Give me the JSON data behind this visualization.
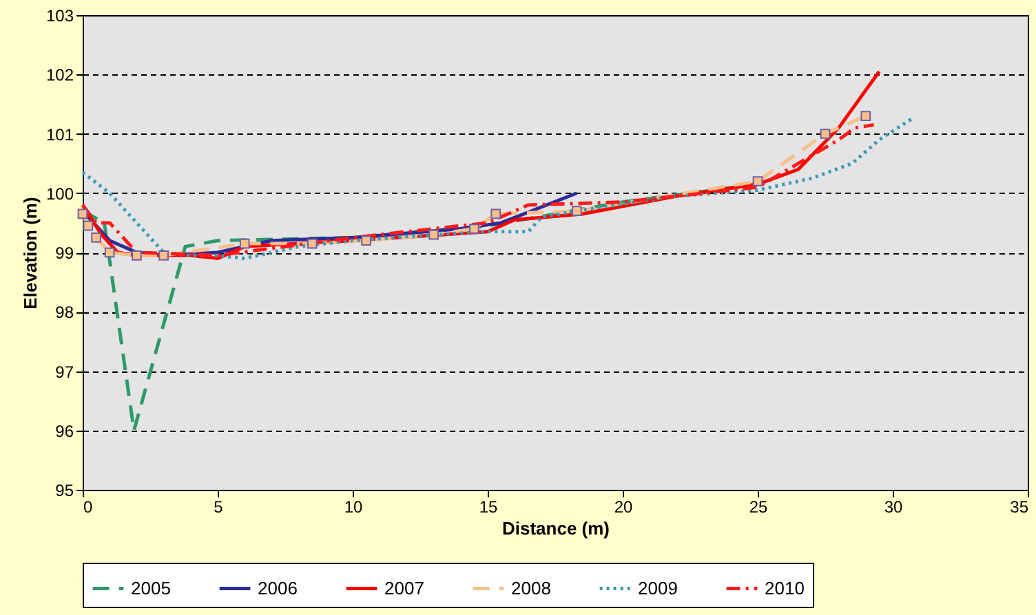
{
  "chart_data": {
    "type": "line",
    "xlabel": "Distance (m)",
    "ylabel": "Elevation (m)",
    "xlim": [
      0,
      35
    ],
    "xticks": [
      0,
      5,
      10,
      15,
      20,
      25,
      30,
      35
    ],
    "ylim": [
      95,
      103
    ],
    "yticks": [
      95,
      96,
      97,
      98,
      99,
      100,
      101,
      102,
      103
    ],
    "grid": "y",
    "legend": "bottom",
    "series": [
      {
        "name": "2005",
        "color": "#2e9a6a",
        "line_style": "dashed",
        "marker": "none",
        "x": [
          0,
          0.8,
          1.9,
          3.8,
          5,
          10,
          15,
          20,
          25
        ],
        "values": [
          99.7,
          99.5,
          96.0,
          99.1,
          99.2,
          99.25,
          99.45,
          99.85,
          100.15
        ]
      },
      {
        "name": "2006",
        "color": "#2b2b9a",
        "line_style": "solid",
        "marker": "none",
        "x": [
          0,
          0.6,
          1,
          2,
          3,
          5,
          7,
          10,
          14,
          15.5,
          18.3
        ],
        "values": [
          99.7,
          99.4,
          99.2,
          99.0,
          98.95,
          99.0,
          99.2,
          99.25,
          99.4,
          99.5,
          100.0
        ]
      },
      {
        "name": "2007",
        "color": "#ff0000",
        "line_style": "solid",
        "marker": "none",
        "x": [
          0,
          0.7,
          1.3,
          2,
          4,
          5,
          6,
          10,
          15,
          16,
          18.5,
          22,
          25,
          26.5,
          28,
          29.5
        ],
        "values": [
          99.8,
          99.3,
          99.0,
          98.95,
          98.95,
          98.9,
          99.1,
          99.2,
          99.35,
          99.55,
          99.65,
          99.95,
          100.15,
          100.4,
          101.1,
          102.05
        ]
      },
      {
        "name": "2008",
        "color": "#f9c08c",
        "line_style": "dashed",
        "marker": "square",
        "x": [
          0,
          0.2,
          0.5,
          1,
          2,
          3,
          6,
          8.5,
          10.5,
          13,
          14.5,
          15.3,
          18.3,
          25,
          27.5,
          29
        ],
        "values": [
          99.65,
          99.45,
          99.25,
          99.0,
          98.95,
          98.95,
          99.15,
          99.15,
          99.2,
          99.3,
          99.4,
          99.65,
          99.7,
          100.2,
          101.0,
          101.3
        ]
      },
      {
        "name": "2009",
        "color": "#3a9ab8",
        "line_style": "dotted",
        "marker": "none",
        "x": [
          0,
          1,
          2,
          3,
          4,
          5,
          6,
          8,
          10,
          13,
          15,
          16.5,
          17,
          19,
          22,
          25,
          27,
          28.5,
          29.5,
          30.7
        ],
        "values": [
          100.35,
          100.0,
          99.5,
          99.0,
          98.95,
          98.95,
          98.9,
          99.1,
          99.2,
          99.3,
          99.35,
          99.35,
          99.6,
          99.75,
          99.95,
          100.05,
          100.25,
          100.5,
          100.9,
          101.25
        ]
      },
      {
        "name": "2010",
        "color": "#ff1a1a",
        "line_style": "dashdot",
        "marker": "none",
        "x": [
          0,
          0.5,
          1,
          2,
          5,
          10,
          15,
          16.5,
          20,
          25,
          28,
          28.6,
          29.3
        ],
        "values": [
          99.8,
          99.5,
          99.5,
          99.0,
          98.95,
          99.25,
          99.5,
          99.8,
          99.85,
          100.1,
          100.9,
          101.1,
          101.15
        ]
      }
    ]
  }
}
